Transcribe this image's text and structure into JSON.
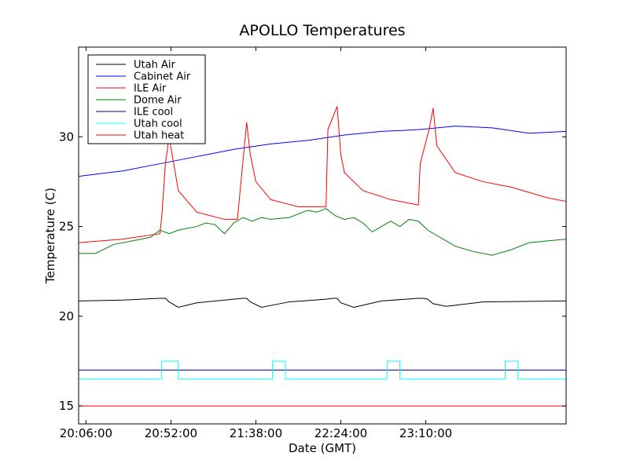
{
  "chart_data": {
    "type": "line",
    "title": "APOLLO Temperatures",
    "xlabel": "Date (GMT)",
    "ylabel": "Temperature (C)",
    "xlim": [
      -4,
      260
    ],
    "ylim": [
      14,
      35
    ],
    "x_unit": "minutes after 20:06:00",
    "x_ticks": [
      0,
      46,
      92,
      138,
      184
    ],
    "x_tick_labels": [
      "20:06:00",
      "20:52:00",
      "21:38:00",
      "22:24:00",
      "23:10:00"
    ],
    "y_ticks": [
      15,
      20,
      25,
      30
    ],
    "y_tick_labels": [
      "15",
      "20",
      "25",
      "30"
    ],
    "grid": false,
    "legend_position": "top-left",
    "series": [
      {
        "name": "Utah Air",
        "color": "#000000",
        "x": [
          -4,
          20,
          40,
          43,
          45,
          50,
          60,
          80,
          85,
          87,
          89,
          95,
          110,
          130,
          134,
          136,
          138,
          145,
          160,
          180,
          183,
          185,
          188,
          195,
          215,
          260
        ],
        "y": [
          20.85,
          20.9,
          21.0,
          21.0,
          20.8,
          20.5,
          20.75,
          20.95,
          21.0,
          21.0,
          20.8,
          20.5,
          20.8,
          20.95,
          21.0,
          21.0,
          20.75,
          20.5,
          20.85,
          21.0,
          21.0,
          20.95,
          20.7,
          20.55,
          20.8,
          20.85
        ]
      },
      {
        "name": "Cabinet Air",
        "color": "#0000ff",
        "x": [
          -4,
          20,
          40,
          60,
          80,
          100,
          120,
          140,
          160,
          180,
          200,
          220,
          240,
          260
        ],
        "y": [
          27.8,
          28.1,
          28.5,
          28.9,
          29.3,
          29.6,
          29.8,
          30.1,
          30.3,
          30.4,
          30.6,
          30.5,
          30.2,
          30.3
        ]
      },
      {
        "name": "ILE Air",
        "color": "#ff0000",
        "x": [
          -4,
          20,
          40,
          41,
          43,
          45,
          50,
          60,
          75,
          82,
          87,
          89,
          92,
          100,
          115,
          130,
          131,
          136,
          138,
          140,
          150,
          165,
          180,
          181,
          186,
          188,
          190,
          200,
          215,
          230,
          240,
          250,
          260
        ],
        "y": [
          24.1,
          24.3,
          24.6,
          25.5,
          28.5,
          30.0,
          27.0,
          25.8,
          25.4,
          25.4,
          30.8,
          29.0,
          27.5,
          26.5,
          26.1,
          26.1,
          30.4,
          31.7,
          29.0,
          28.0,
          27.0,
          26.5,
          26.2,
          28.5,
          30.5,
          31.6,
          29.5,
          28.0,
          27.5,
          27.2,
          26.9,
          26.6,
          26.4
        ]
      },
      {
        "name": "Dome Air",
        "color": "#008000",
        "x": [
          -4,
          5,
          15,
          25,
          35,
          40,
          45,
          50,
          60,
          65,
          70,
          75,
          80,
          85,
          90,
          95,
          100,
          110,
          115,
          120,
          125,
          130,
          135,
          140,
          145,
          150,
          155,
          160,
          165,
          170,
          175,
          180,
          185,
          190,
          195,
          200,
          210,
          220,
          230,
          240,
          250,
          260
        ],
        "y": [
          23.5,
          23.5,
          24.0,
          24.2,
          24.4,
          24.8,
          24.6,
          24.8,
          25.0,
          25.2,
          25.1,
          24.6,
          25.2,
          25.5,
          25.3,
          25.5,
          25.4,
          25.5,
          25.7,
          25.9,
          25.8,
          26.0,
          25.6,
          25.4,
          25.5,
          25.2,
          24.7,
          25.0,
          25.3,
          25.0,
          25.4,
          25.3,
          24.8,
          24.5,
          24.2,
          23.9,
          23.6,
          23.4,
          23.7,
          24.1,
          24.2,
          24.3
        ]
      },
      {
        "name": "ILE cool",
        "color": "#000080",
        "x": [
          -4,
          260
        ],
        "y": [
          17.0,
          17.0
        ]
      },
      {
        "name": "Utah cool",
        "color": "#00ffff",
        "x": [
          -4,
          41,
          41,
          50,
          50,
          101,
          101,
          108,
          108,
          163,
          163,
          170,
          170,
          227,
          227,
          234,
          234,
          260
        ],
        "y": [
          16.5,
          16.5,
          17.5,
          17.5,
          16.5,
          16.5,
          17.5,
          17.5,
          16.5,
          16.5,
          17.5,
          17.5,
          16.5,
          16.5,
          17.5,
          17.5,
          16.5,
          16.5
        ]
      },
      {
        "name": "Utah heat",
        "color": "#ff0000",
        "x": [
          -4,
          260
        ],
        "y": [
          15.0,
          15.0
        ]
      }
    ]
  }
}
